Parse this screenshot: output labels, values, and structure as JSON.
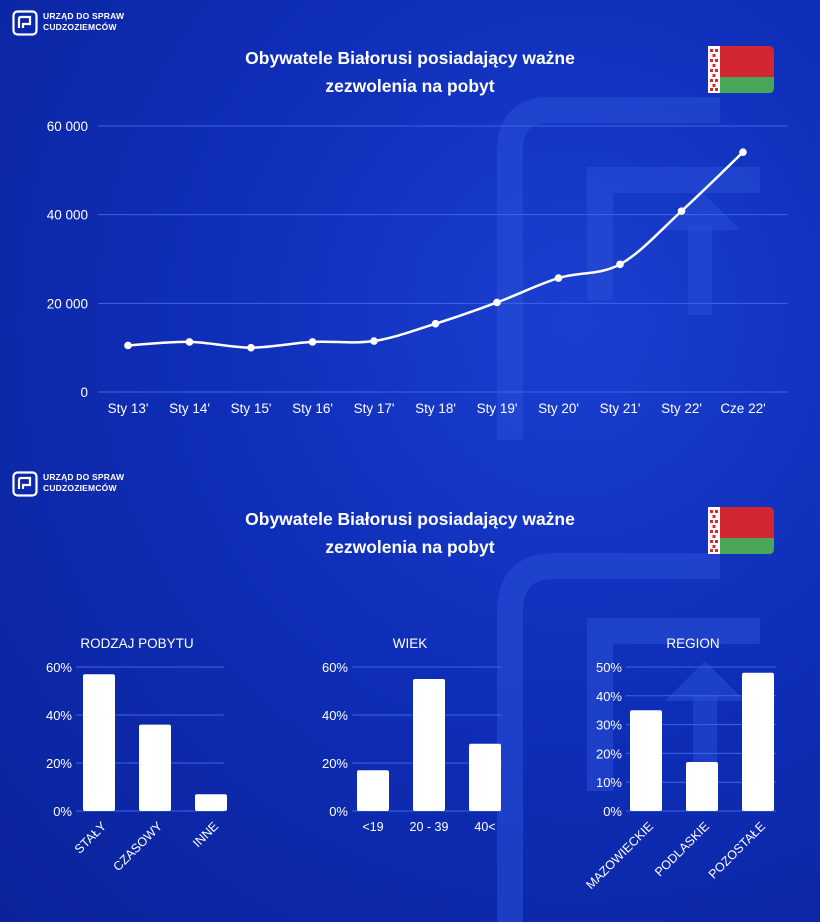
{
  "brand": {
    "line1": "URZĄD DO SPRAW",
    "line2": "CUDZOZIEMCÓW",
    "logo_icon": "office-logo-icon",
    "flag_icon": "belarus-flag-icon"
  },
  "colors": {
    "background": "#0f2eb8",
    "flag_red": "#d22730",
    "flag_green": "#4aa657",
    "line": "#ffffff"
  },
  "panels": [
    {
      "title_line1": "Obywatele Białorusi posiadający ważne",
      "title_line2": "zezwolenia na pobyt"
    },
    {
      "title_line1": "Obywatele Białorusi posiadający ważne",
      "title_line2": "zezwolenia na pobyt"
    }
  ],
  "chart_data": [
    {
      "type": "line",
      "x": [
        "Sty 13'",
        "Sty 14'",
        "Sty 15'",
        "Sty 16'",
        "Sty 17'",
        "Sty 18'",
        "Sty 19'",
        "Sty 20'",
        "Sty 21'",
        "Sty 22'",
        "Cze 22'"
      ],
      "values": [
        10500,
        11300,
        10000,
        11300,
        11500,
        15400,
        20200,
        25700,
        28800,
        40800,
        54100
      ],
      "y_ticks": [
        "0",
        "20 000",
        "40 000",
        "60 000"
      ],
      "y_tick_values": [
        0,
        20000,
        40000,
        60000
      ],
      "ylim": [
        0,
        60000
      ],
      "grid": true
    },
    {
      "type": "bar",
      "title": "RODZAJ POBYTU",
      "categories": [
        "STAŁY",
        "CZASOWY",
        "INNE"
      ],
      "values": [
        57,
        36,
        7
      ],
      "y_ticks": [
        "0%",
        "20%",
        "40%",
        "60%"
      ],
      "y_tick_values": [
        0,
        20,
        40,
        60
      ],
      "ylim": [
        0,
        60
      ],
      "grid": true
    },
    {
      "type": "bar",
      "title": "WIEK",
      "categories": [
        "<19",
        "20 - 39",
        "40<"
      ],
      "values": [
        17,
        55,
        28
      ],
      "y_ticks": [
        "0%",
        "20%",
        "40%",
        "60%"
      ],
      "y_tick_values": [
        0,
        20,
        40,
        60
      ],
      "ylim": [
        0,
        60
      ],
      "grid": true
    },
    {
      "type": "bar",
      "title": "REGION",
      "categories": [
        "MAZOWIECKIE",
        "PODLASKIE",
        "POZOSTAŁE"
      ],
      "values": [
        35,
        17,
        48
      ],
      "y_ticks": [
        "0%",
        "10%",
        "20%",
        "30%",
        "40%",
        "50%"
      ],
      "y_tick_values": [
        0,
        10,
        20,
        30,
        40,
        50
      ],
      "ylim": [
        0,
        50
      ],
      "grid": true
    }
  ]
}
